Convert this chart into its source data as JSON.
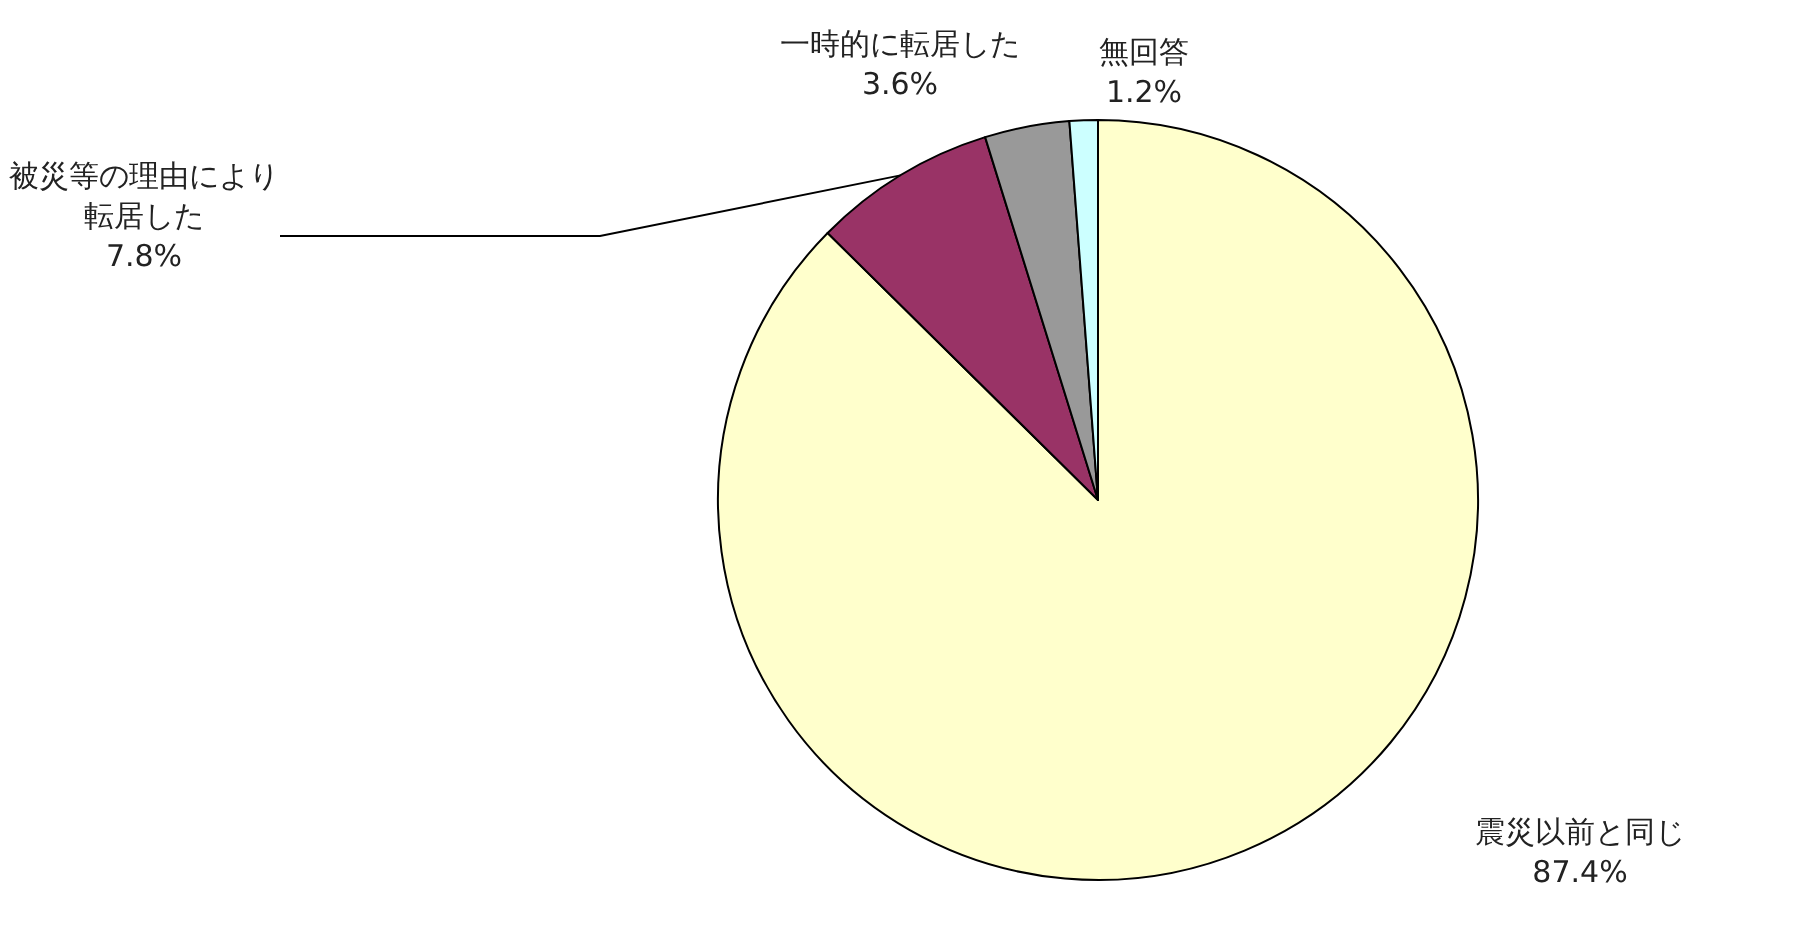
{
  "chart_data": {
    "type": "pie",
    "categories": [
      "震災以前と同じ",
      "被災等の理由により転居した",
      "一時的に転居した",
      "無回答"
    ],
    "values": [
      87.4,
      7.8,
      3.6,
      1.2
    ],
    "colors": [
      "#ffffcc",
      "#993366",
      "#999999",
      "#ccffff"
    ],
    "value_labels": [
      "87.4%",
      "7.8%",
      "3.6%",
      "1.2%"
    ],
    "legend": false
  }
}
